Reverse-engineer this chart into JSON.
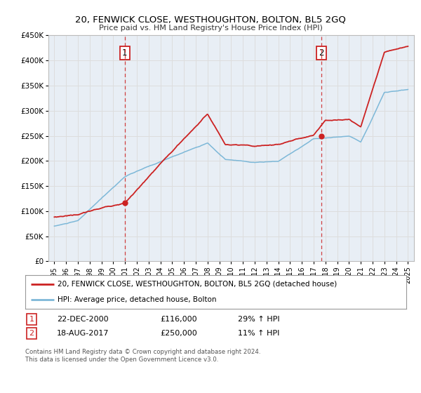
{
  "title": "20, FENWICK CLOSE, WESTHOUGHTON, BOLTON, BL5 2GQ",
  "subtitle": "Price paid vs. HM Land Registry's House Price Index (HPI)",
  "ylim": [
    0,
    450000
  ],
  "yticks": [
    0,
    50000,
    100000,
    150000,
    200000,
    250000,
    300000,
    350000,
    400000,
    450000
  ],
  "ytick_labels": [
    "£0",
    "£50K",
    "£100K",
    "£150K",
    "£200K",
    "£250K",
    "£300K",
    "£350K",
    "£400K",
    "£450K"
  ],
  "xlim_start": 1994.5,
  "xlim_end": 2025.5,
  "xtick_years": [
    1995,
    1996,
    1997,
    1998,
    1999,
    2000,
    2001,
    2002,
    2003,
    2004,
    2005,
    2006,
    2007,
    2008,
    2009,
    2010,
    2011,
    2012,
    2013,
    2014,
    2015,
    2016,
    2017,
    2018,
    2019,
    2020,
    2021,
    2022,
    2023,
    2024,
    2025
  ],
  "hpi_color": "#7db8d8",
  "price_color": "#cc2222",
  "grid_color": "#dddddd",
  "background_color": "#e8eef5",
  "sale1_x": 2000.97,
  "sale1_y": 116000,
  "sale2_x": 2017.63,
  "sale2_y": 250000,
  "legend_line1": "20, FENWICK CLOSE, WESTHOUGHTON, BOLTON, BL5 2GQ (detached house)",
  "legend_line2": "HPI: Average price, detached house, Bolton",
  "footer1": "Contains HM Land Registry data © Crown copyright and database right 2024.",
  "footer2": "This data is licensed under the Open Government Licence v3.0.",
  "table_row1": [
    "1",
    "22-DEC-2000",
    "£116,000",
    "29% ↑ HPI"
  ],
  "table_row2": [
    "2",
    "18-AUG-2017",
    "£250,000",
    "11% ↑ HPI"
  ]
}
